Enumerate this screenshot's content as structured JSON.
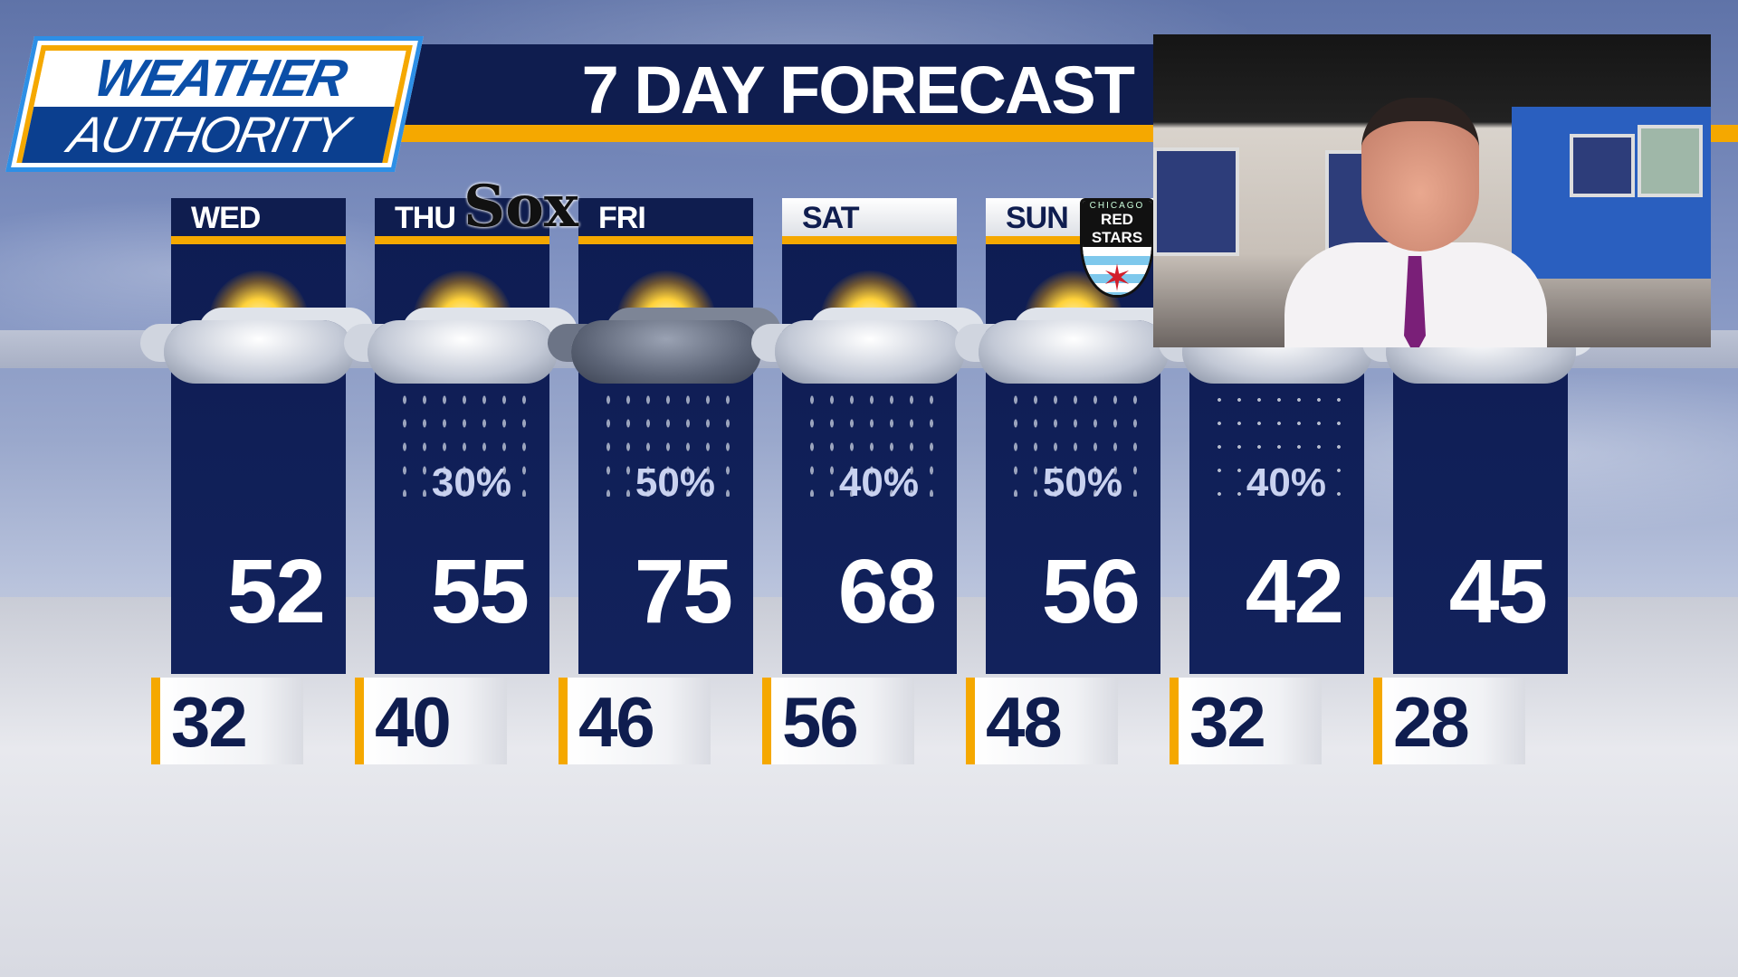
{
  "logo": {
    "line1": "WEATHER",
    "line2": "AUTHORITY"
  },
  "title": "7 DAY FORECAST",
  "colors": {
    "navy": "#0f1d4f",
    "gold": "#f5a800",
    "logo_blue": "#0b3f8f"
  },
  "days": [
    {
      "day": "WED",
      "icon": "partly-sunny",
      "precip": "",
      "high": "52",
      "low": "32",
      "header_style": "dark"
    },
    {
      "day": "THU",
      "icon": "partly-sunny-rain",
      "precip": "30%",
      "high": "55",
      "low": "40",
      "header_style": "dark"
    },
    {
      "day": "FRI",
      "icon": "mostly-cloudy-rain",
      "precip": "50%",
      "high": "75",
      "low": "46",
      "header_style": "dark"
    },
    {
      "day": "SAT",
      "icon": "partly-sunny-rain",
      "precip": "40%",
      "high": "68",
      "low": "56",
      "header_style": "light"
    },
    {
      "day": "SUN",
      "icon": "partly-sunny-rain",
      "precip": "50%",
      "high": "56",
      "low": "48",
      "header_style": "light"
    },
    {
      "day": "",
      "icon": "partly-sunny-snow",
      "precip": "40%",
      "high": "42",
      "low": "32",
      "header_style": "dark"
    },
    {
      "day": "",
      "icon": "partly-sunny",
      "precip": "",
      "high": "45",
      "low": "28",
      "header_style": "dark"
    }
  ],
  "badges": {
    "sox": "Sox",
    "red_stars_top": "CHICAGO",
    "red_stars": "RED STARS"
  },
  "video": {
    "description_icon": "meteorologist-video-feed"
  }
}
